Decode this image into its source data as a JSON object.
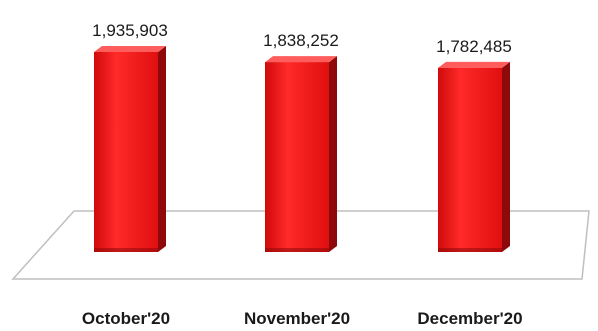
{
  "chart_data": {
    "type": "bar",
    "categories": [
      "October'20",
      "November'20",
      "December'20"
    ],
    "values": [
      1935903,
      1838252,
      1782485
    ],
    "data_labels": [
      "1,935,903",
      "1,838,252",
      "1,782,485"
    ],
    "title": "",
    "xlabel": "",
    "ylabel": "",
    "three_d": true,
    "gridlines": false,
    "legend": "none",
    "colors": {
      "bar_front": "#ee1111",
      "bar_highlight": "#ff3a3a",
      "bar_side": "#8e0a0a",
      "bar_top": "#ff5c5c",
      "floor_fill": "#ffffff",
      "floor_stroke": "#bfbfbf"
    }
  }
}
